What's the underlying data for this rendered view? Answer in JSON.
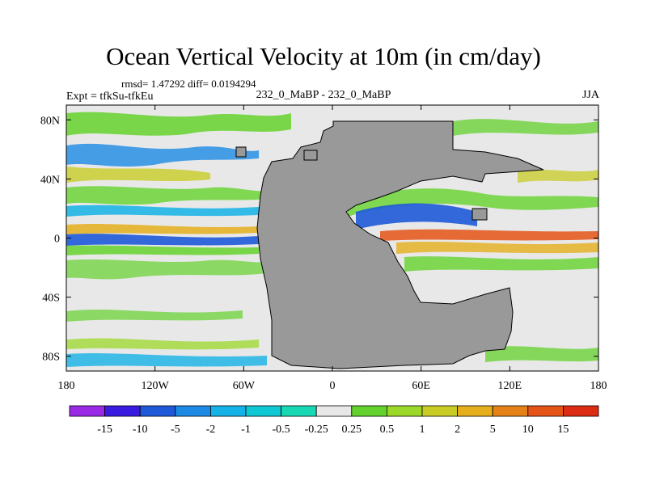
{
  "header": {
    "title": "Ocean Vertical Velocity at 10m (in cm/day)",
    "stats": "rmsd= 1.47292 diff= 0.0194294",
    "expt": "Expt = tfkSu-tfkEu",
    "center_label": "232_0_MaBP - 232_0_MaBP",
    "season": "JJA"
  },
  "chart_data": {
    "type": "heatmap",
    "title": "Ocean Vertical Velocity at 10m (in cm/day)",
    "units": "cm/day",
    "xlim": [
      -180,
      180
    ],
    "ylim": [
      -90,
      90
    ],
    "x_ticks": [
      {
        "value": -180,
        "label": "180"
      },
      {
        "value": -120,
        "label": "120W"
      },
      {
        "value": -60,
        "label": "60W"
      },
      {
        "value": 0,
        "label": "0"
      },
      {
        "value": 60,
        "label": "60E"
      },
      {
        "value": 120,
        "label": "120E"
      },
      {
        "value": 180,
        "label": "180"
      }
    ],
    "y_ticks": [
      {
        "value": 80,
        "label": "80N"
      },
      {
        "value": 40,
        "label": "40N"
      },
      {
        "value": 0,
        "label": "0"
      },
      {
        "value": -40,
        "label": "40S"
      },
      {
        "value": -80,
        "label": "80S"
      }
    ],
    "land_color": "#999999",
    "colorbar": {
      "levels": [
        "-15",
        "-10",
        "-5",
        "-2",
        "-1",
        "-0.5",
        "-0.25",
        "0.25",
        "0.5",
        "1",
        "2",
        "5",
        "10",
        "15"
      ],
      "colors": [
        "#9a2ae6",
        "#3a1ce0",
        "#1e5ad8",
        "#1c8ae4",
        "#14b2e6",
        "#10c8d4",
        "#18d8b4",
        "#e8e8e8",
        "#64d22c",
        "#9cd82a",
        "#c8cc24",
        "#e4ae1c",
        "#e48218",
        "#e45416",
        "#dc2c14"
      ]
    },
    "features": [
      {
        "name": "equatorial downwelling band west of land",
        "lon": [
          -180,
          -40
        ],
        "lat": [
          -2,
          4
        ],
        "value": "-10"
      },
      {
        "name": "equatorial upwelling band east of land",
        "lon": [
          30,
          180
        ],
        "lat": [
          -5,
          0
        ],
        "value": "10"
      },
      {
        "name": "tropical downwelling core",
        "lon": [
          40,
          100
        ],
        "lat": [
          8,
          20
        ],
        "value": "-5"
      }
    ]
  }
}
